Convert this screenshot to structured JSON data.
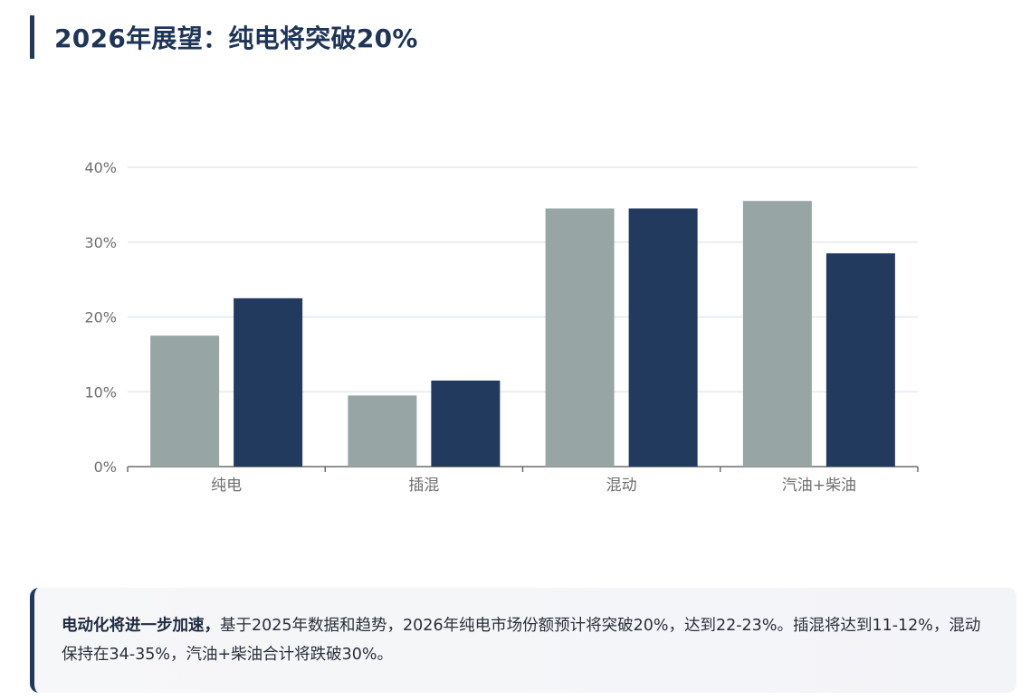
{
  "title": "2026年展望：纯电将突破20%",
  "chart_data": {
    "type": "bar",
    "categories": [
      "纯电",
      "插混",
      "混动",
      "汽油+柴油"
    ],
    "series": [
      {
        "values": [
          17.5,
          9.5,
          34.5,
          35.5
        ],
        "color": "#97a5a4"
      },
      {
        "values": [
          22.5,
          11.5,
          34.5,
          28.5
        ],
        "color": "#223a5e"
      }
    ],
    "yticks": [
      "0%",
      "10%",
      "20%",
      "30%",
      "40%"
    ],
    "ylim": [
      0,
      40
    ],
    "y_unit": "%",
    "grid": true,
    "legend": false
  },
  "note": {
    "lead": "电动化将进一步加速，",
    "text": "基于2025年数据和趋势，2026年纯电市场份额预计将突破20%，达到22-23%。插混将达到11-12%，混动保持在34-35%，汽油+柴油合计将跌破30%。"
  }
}
